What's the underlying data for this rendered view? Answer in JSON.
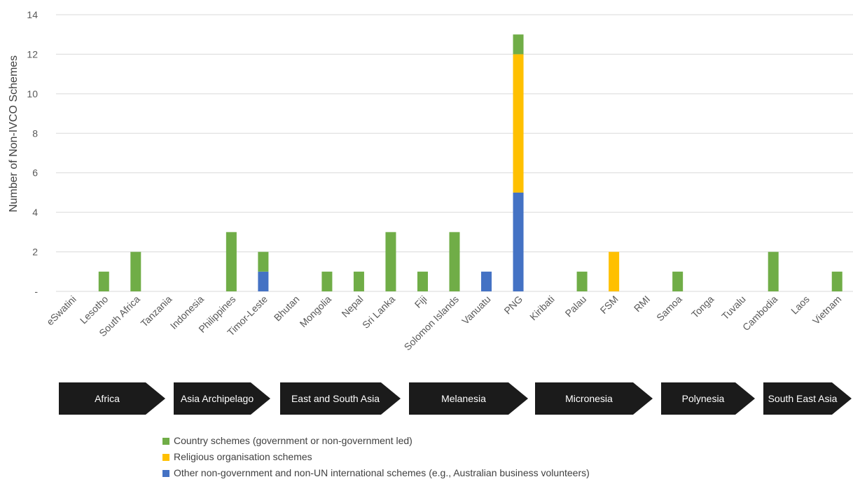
{
  "chart_data": {
    "type": "bar",
    "stacked": true,
    "ylabel": "Number of Non-IVCO Schemes",
    "ylim": [
      0,
      14
    ],
    "yticks": [
      "-",
      "2",
      "4",
      "6",
      "8",
      "10",
      "12",
      "14"
    ],
    "grid": true,
    "legend_position": "bottom",
    "categories": [
      "eSwatini",
      "Lesotho",
      "South Africa",
      "Tanzania",
      "Indonesia",
      "Philippines",
      "Timor-Leste",
      "Bhutan",
      "Mongolia",
      "Nepal",
      "Sri Lanka",
      "Fiji",
      "Solomon Islands",
      "Vanuatu",
      "PNG",
      "Kiribati",
      "Palau",
      "FSM",
      "RMI",
      "Samoa",
      "Tonga",
      "Tuvalu",
      "Cambodia",
      "Laos",
      "Vietnam"
    ],
    "series": [
      {
        "name": "Other non-government and non-UN international schemes (e.g., Australian business volunteers)",
        "color": "#4472c4",
        "values": [
          0,
          0,
          0,
          0,
          0,
          0,
          1,
          0,
          0,
          0,
          0,
          0,
          0,
          1,
          5,
          0,
          0,
          0,
          0,
          0,
          0,
          0,
          0,
          0,
          0
        ]
      },
      {
        "name": "Religious organisation schemes",
        "color": "#ffc000",
        "values": [
          0,
          0,
          0,
          0,
          0,
          0,
          0,
          0,
          0,
          0,
          0,
          0,
          0,
          0,
          7,
          0,
          0,
          2,
          0,
          0,
          0,
          0,
          0,
          0,
          0
        ]
      },
      {
        "name": "Country schemes (government or non-government led)",
        "color": "#70ad47",
        "values": [
          0,
          1,
          2,
          0,
          0,
          3,
          1,
          0,
          1,
          1,
          3,
          1,
          3,
          0,
          1,
          0,
          1,
          0,
          0,
          1,
          0,
          0,
          2,
          0,
          1
        ]
      }
    ],
    "regions": [
      {
        "label": "Africa"
      },
      {
        "label": "Asia Archipelago"
      },
      {
        "label": "East and South Asia"
      },
      {
        "label": "Melanesia"
      },
      {
        "label": "Micronesia"
      },
      {
        "label": "Polynesia"
      },
      {
        "label": "South East Asia"
      }
    ]
  },
  "legend": {
    "items": [
      {
        "label": "Country schemes (government or non-government led)",
        "color": "#70ad47"
      },
      {
        "label": "Religious organisation schemes",
        "color": "#ffc000"
      },
      {
        "label": "Other non-government and non-UN international schemes (e.g., Australian business volunteers)",
        "color": "#4472c4"
      }
    ]
  }
}
